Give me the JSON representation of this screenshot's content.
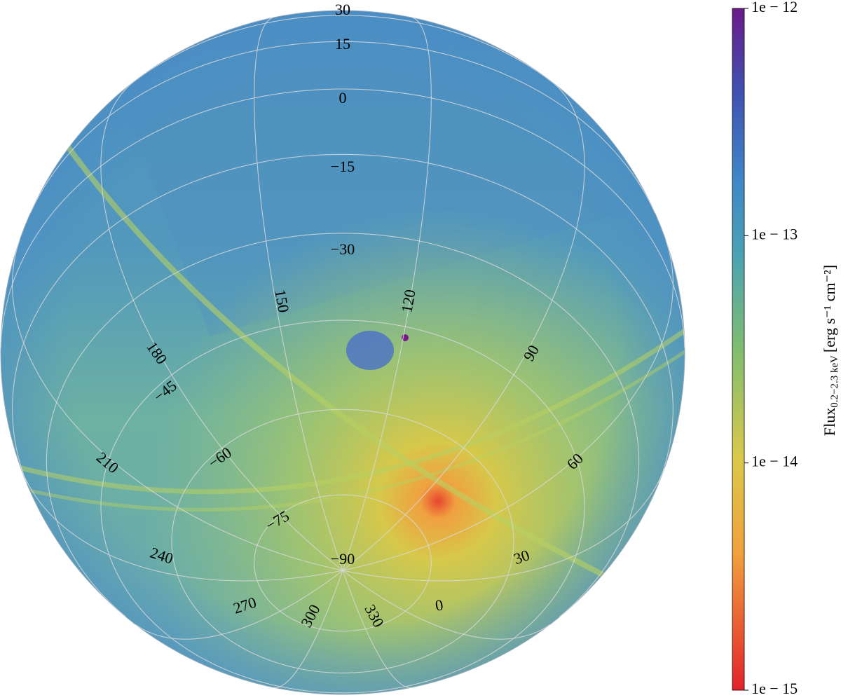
{
  "graticule": {
    "latitudes": [
      30,
      15,
      0,
      {
        "value": -15,
        "label": "−15"
      },
      {
        "value": -30,
        "label": "−30"
      },
      {
        "value": -45,
        "label": "−45"
      },
      {
        "value": -60,
        "label": "−60"
      },
      {
        "value": -75,
        "label": "−75"
      },
      {
        "value": -90,
        "label": "−90"
      }
    ],
    "longitudes": [
      150,
      120,
      90,
      60,
      30,
      0,
      330,
      300,
      270,
      240,
      210,
      180
    ]
  },
  "colorbar": {
    "label": "Flux",
    "label_subscript": "0.2−2.3 keV",
    "label_units": "[erg s⁻¹ cm⁻²]",
    "log_scale": true,
    "lim": [
      1e-15,
      1e-12
    ],
    "ticks": [
      {
        "value": 1e-12,
        "label": "1e − 12"
      },
      {
        "value": 1e-13,
        "label": "1e − 13"
      },
      {
        "value": 1e-14,
        "label": "1e − 14"
      },
      {
        "value": 1e-15,
        "label": "1e − 15"
      }
    ]
  }
}
